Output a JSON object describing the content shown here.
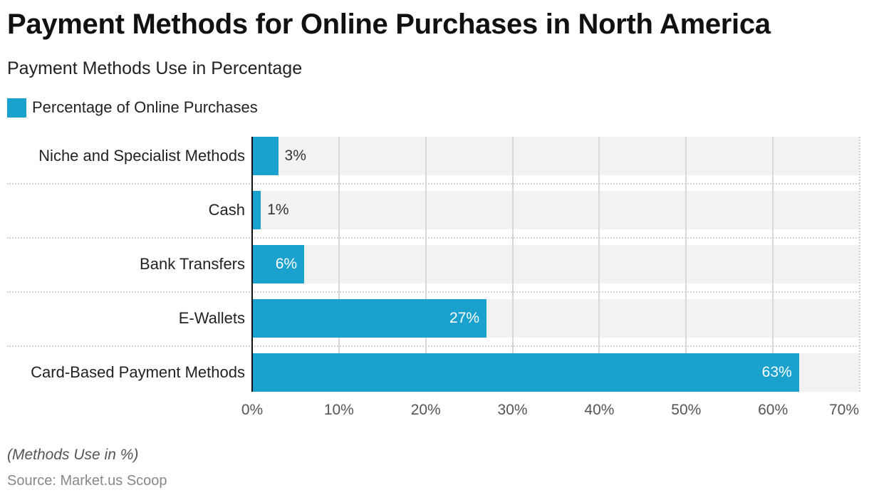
{
  "header": {
    "title": "Payment Methods for Online Purchases in North America",
    "subtitle": "Payment Methods Use in Percentage"
  },
  "legend": {
    "items": [
      {
        "label": "Percentage of Online Purchases",
        "color": "#1aa1cd"
      }
    ]
  },
  "footer": {
    "note": "(Methods Use in %)",
    "source": "Source: Market.us Scoop"
  },
  "colors": {
    "bar": "#1aa1cd",
    "band": "#f2f2f2",
    "gridline": "#d8d8d8",
    "axis": "#111111"
  },
  "chart_data": {
    "type": "bar",
    "orientation": "horizontal",
    "title": "Payment Methods for Online Purchases in North America",
    "subtitle": "Payment Methods Use in Percentage",
    "categories": [
      "Niche and Specialist Methods",
      "Cash",
      "Bank Transfers",
      "E-Wallets",
      "Card-Based Payment Methods"
    ],
    "series": [
      {
        "name": "Percentage of Online Purchases",
        "values": [
          3,
          1,
          6,
          27,
          63
        ],
        "labels": [
          "3%",
          "1%",
          "6%",
          "27%",
          "63%"
        ],
        "color": "#1aa1cd"
      }
    ],
    "xlabel": "",
    "ylabel": "",
    "xlim": [
      0,
      70
    ],
    "xticks": [
      0,
      10,
      20,
      30,
      40,
      50,
      60,
      70
    ],
    "xtick_labels": [
      "0%",
      "10%",
      "20%",
      "30%",
      "40%",
      "50%",
      "60%",
      "70%"
    ],
    "grid": true,
    "legend_position": "top-left",
    "annotations": [
      "(Methods Use in %)",
      "Source: Market.us Scoop"
    ]
  }
}
